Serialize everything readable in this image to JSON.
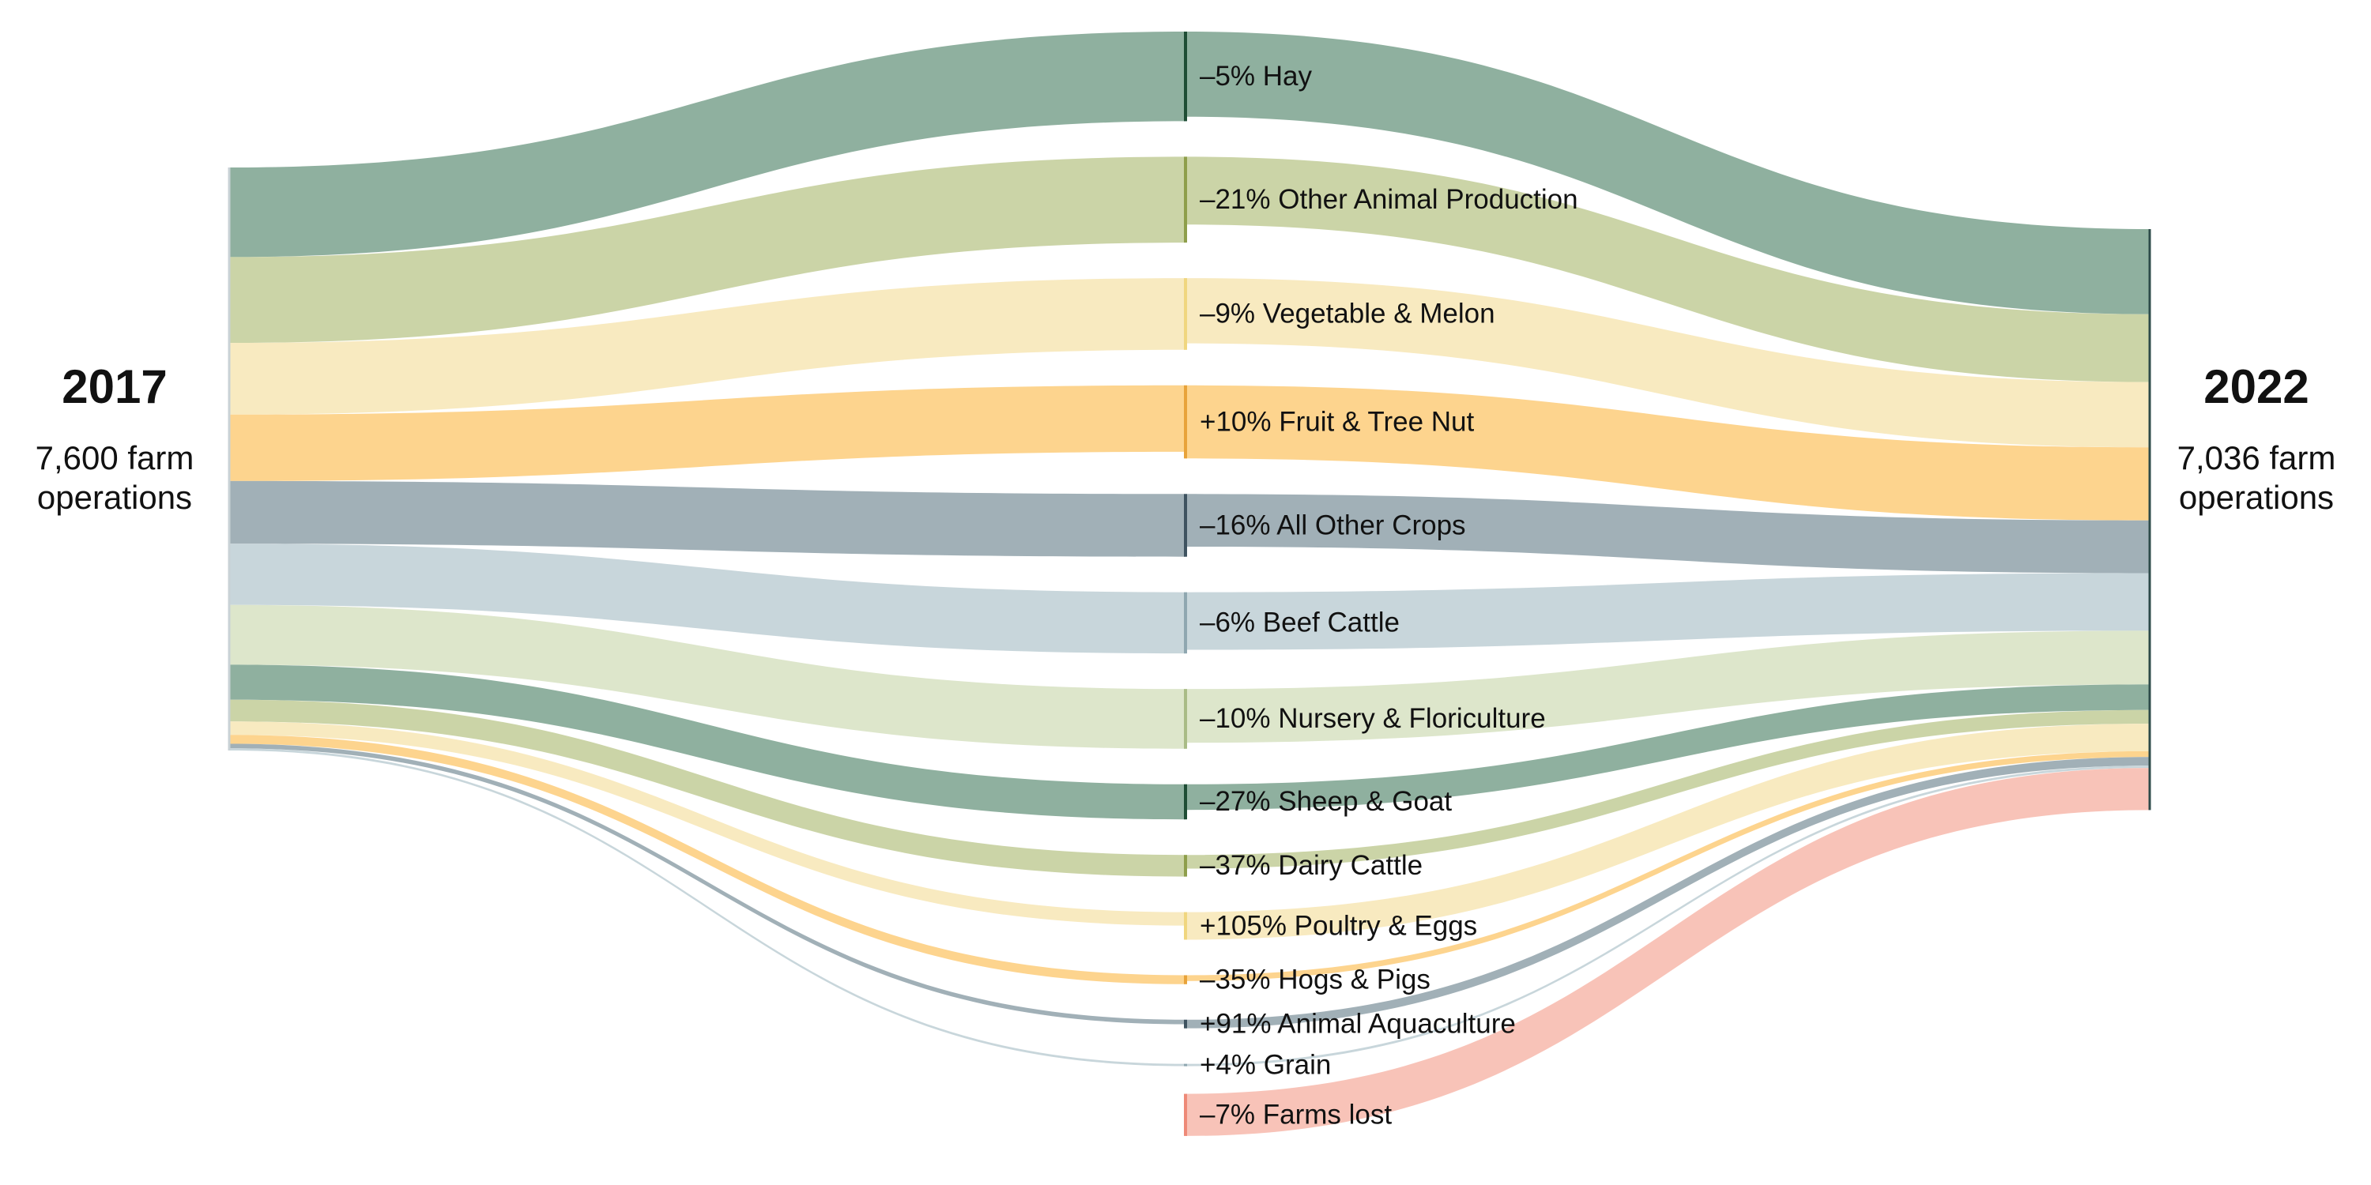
{
  "left": {
    "year": "2017",
    "ops_line1": "7,600 farm",
    "ops_line2": "operations"
  },
  "right": {
    "year": "2022",
    "ops_line1": "7,036 farm",
    "ops_line2": "operations"
  },
  "chart_data": {
    "type": "sankey",
    "title": "",
    "left_total": 7600,
    "right_total": 7036,
    "categories": [
      {
        "key": "hay",
        "label": "–5% Hay",
        "change_pct": -5,
        "value_2017": 1200,
        "value_2022": 1140,
        "color": "#8FB09F",
        "edge": "#1F4D35"
      },
      {
        "key": "other_animal",
        "label": "–21% Other Animal Production",
        "change_pct": -21,
        "value_2017": 1150,
        "value_2022": 909,
        "color": "#CBD4A7",
        "edge": "#8E9E4B"
      },
      {
        "key": "vegetable",
        "label": "–9% Vegetable & Melon",
        "change_pct": -9,
        "value_2017": 960,
        "value_2022": 874,
        "color": "#F8EAC0",
        "edge": "#F0D67F"
      },
      {
        "key": "fruit",
        "label": "+10% Fruit & Tree Nut",
        "change_pct": 10,
        "value_2017": 890,
        "value_2022": 979,
        "color": "#FDD48E",
        "edge": "#E8A33B"
      },
      {
        "key": "all_other_crops",
        "label": "–16% All Other Crops",
        "change_pct": -16,
        "value_2017": 840,
        "value_2022": 706,
        "color": "#A1B0B7",
        "edge": "#3F5360"
      },
      {
        "key": "beef",
        "label": "–6% Beef Cattle",
        "change_pct": -6,
        "value_2017": 820,
        "value_2022": 771,
        "color": "#C8D6DB",
        "edge": "#8FA7B0"
      },
      {
        "key": "nursery",
        "label": "–10% Nursery & Floriculture",
        "change_pct": -10,
        "value_2017": 800,
        "value_2022": 720,
        "color": "#DDE6CB",
        "edge": "#A9BB86"
      },
      {
        "key": "sheep_goat",
        "label": "–27% Sheep & Goat",
        "change_pct": -27,
        "value_2017": 470,
        "value_2022": 343,
        "color": "#8FB09F",
        "edge": "#1F4D35"
      },
      {
        "key": "dairy",
        "label": "–37% Dairy Cattle",
        "change_pct": -37,
        "value_2017": 290,
        "value_2022": 183,
        "color": "#CBD4A7",
        "edge": "#8E9E4B"
      },
      {
        "key": "poultry",
        "label": "+105% Poultry & Eggs",
        "change_pct": 105,
        "value_2017": 180,
        "value_2022": 369,
        "color": "#F8EAC0",
        "edge": "#F0D67F"
      },
      {
        "key": "hogs",
        "label": "–35% Hogs & Pigs",
        "change_pct": -35,
        "value_2017": 120,
        "value_2022": 78,
        "color": "#FDD48E",
        "edge": "#E8A33B"
      },
      {
        "key": "aquaculture",
        "label": "+91% Animal Aquaculture",
        "change_pct": 91,
        "value_2017": 60,
        "value_2022": 115,
        "color": "#A1B0B7",
        "edge": "#3F5360"
      },
      {
        "key": "grain",
        "label": "+4% Grain",
        "change_pct": 4,
        "value_2017": 30,
        "value_2022": 31,
        "color": "#C8D6DB",
        "edge": "#8FA7B0"
      }
    ],
    "farms_lost": {
      "label": "–7% Farms lost",
      "change_pct": -7,
      "value": 564,
      "color": "#F8C3B8",
      "edge": "#EE8A78"
    }
  }
}
